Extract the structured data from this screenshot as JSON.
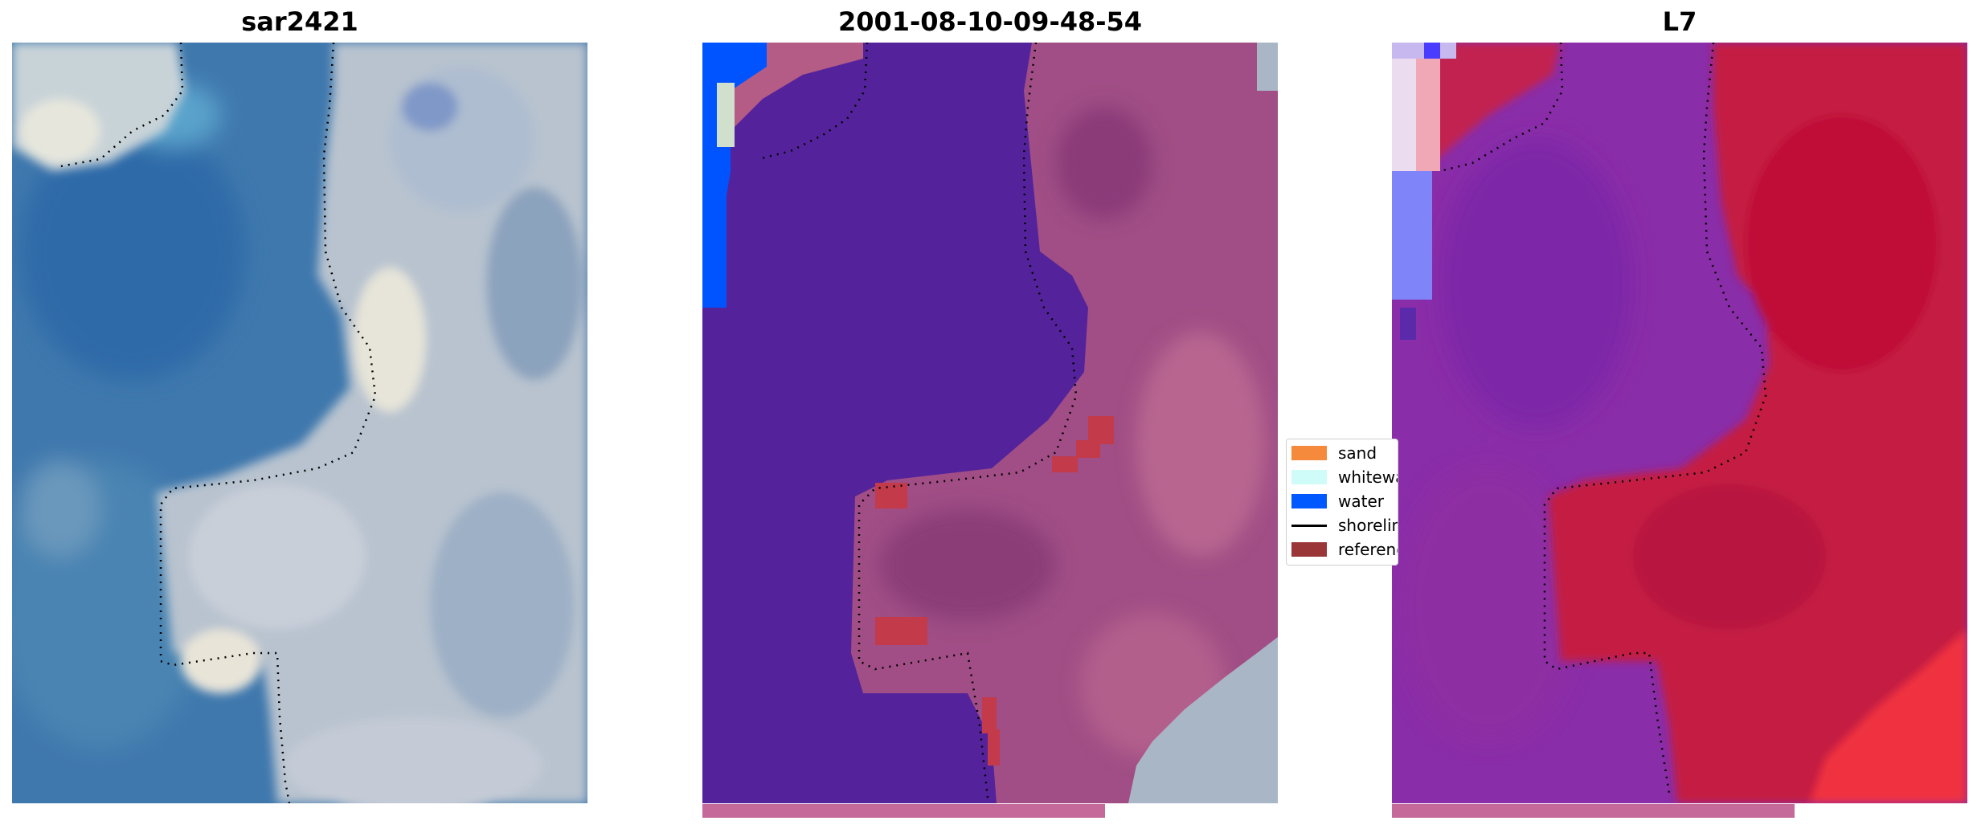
{
  "panels": [
    {
      "title": "sar2421",
      "kind": "rgb"
    },
    {
      "title": "2001-08-10-09-48-54",
      "kind": "classified"
    },
    {
      "title": "L7",
      "kind": "mndwi"
    }
  ],
  "progress": [
    {
      "panel": "2001-08-10-09-48-54",
      "fraction": 0.7
    },
    {
      "panel": "L7",
      "fraction": 0.7
    }
  ],
  "legend": {
    "items": [
      {
        "label": "sand",
        "color": "#f58a3c",
        "kind": "patch"
      },
      {
        "label": "whitewater",
        "color": "#cffbf8",
        "kind": "patch"
      },
      {
        "label": "water",
        "color": "#0058ff",
        "kind": "patch"
      },
      {
        "label": "shoreline",
        "color": "#000000",
        "kind": "line"
      },
      {
        "label": "reference",
        "color": "#9a3538",
        "kind": "patch"
      }
    ]
  },
  "colors": {
    "water_class": "#54239b",
    "land_class": "#b1547f",
    "mndwi_land": "#c5183f",
    "mndwi_water": "#8a2da8",
    "shoreline": "#000000"
  }
}
